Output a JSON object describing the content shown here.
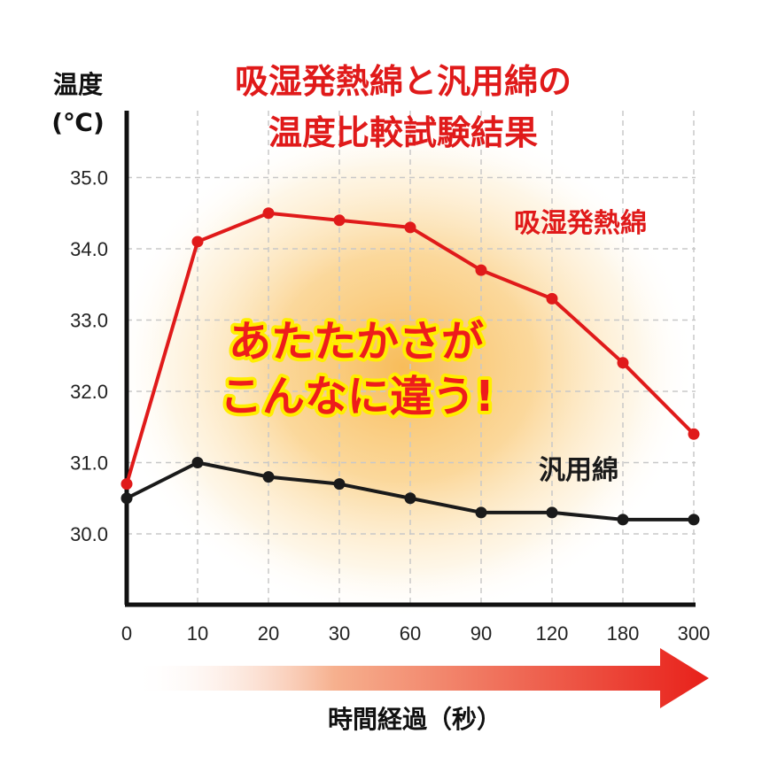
{
  "title_line1": "吸湿発熱綿と汎用綿の",
  "title_line2": "温度比較試験結果",
  "y_label_line1": "温度",
  "y_label_line2": "(℃)",
  "x_label": "時間経過（秒）",
  "callout_line1": "あたたかさが",
  "callout_line2": "こんなに違う!",
  "colors": {
    "series1": "#e01a1a",
    "series2": "#1a1a1a",
    "glow": "#f5a623",
    "arrow": "#e8201a"
  },
  "chart_data": {
    "type": "line",
    "categories": [
      "0",
      "10",
      "20",
      "30",
      "60",
      "90",
      "120",
      "180",
      "300"
    ],
    "y_ticks": [
      "30.0",
      "31.0",
      "32.0",
      "33.0",
      "34.0",
      "35.0"
    ],
    "ylim": [
      29.0,
      36.0
    ],
    "grid": true,
    "series": [
      {
        "name": "吸湿発熱綿",
        "values": [
          30.7,
          34.1,
          34.5,
          34.4,
          34.3,
          33.7,
          33.3,
          32.4,
          31.4
        ]
      },
      {
        "name": "汎用綿",
        "values": [
          30.5,
          31.0,
          30.8,
          30.7,
          30.5,
          30.3,
          30.3,
          30.2,
          30.2
        ]
      }
    ]
  }
}
